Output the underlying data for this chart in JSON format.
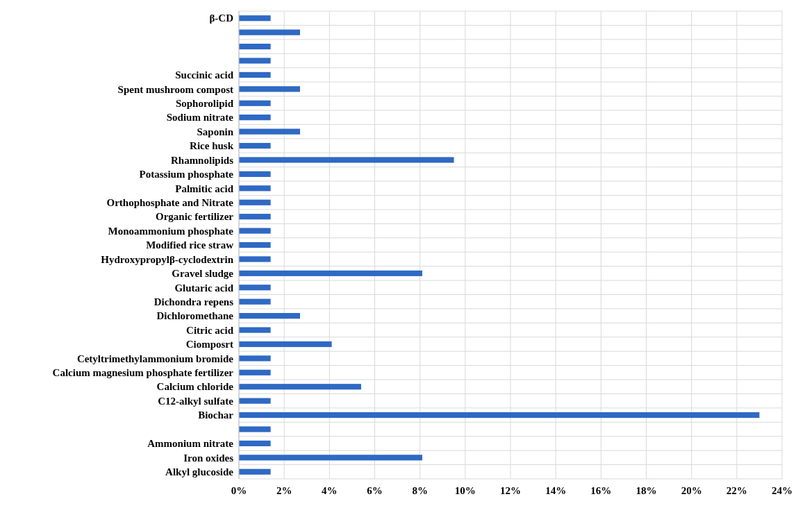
{
  "chart_data": {
    "type": "bar",
    "orientation": "horizontal",
    "categories": [
      "β-CD",
      null,
      null,
      null,
      "Succinic acid",
      "Spent mushroom compost",
      "Sophorolipid",
      "Sodium nitrate",
      "Saponin",
      "Rice husk",
      "Rhamnolipids",
      "Potassium phosphate",
      "Palmitic acid",
      "Orthophosphate and Nitrate",
      "Organic fertilizer",
      "Monoammonium phosphate",
      "Modified rice straw",
      "Hydroxypropylβ-cyclodextrin",
      "Gravel sludge",
      "Glutaric acid",
      "Dichondra repens",
      "Dichloromethane",
      "Citric acid",
      "Ciomposrt",
      "Cetyltrimethylammonium bromide",
      "Calcium magnesium phosphate fertilizer",
      "Calcium chloride",
      "C12-alkyl sulfate",
      "Biochar",
      null,
      "Ammonium nitrate",
      "Iron oxides",
      "Alkyl glucoside"
    ],
    "values": [
      1.4,
      2.7,
      1.4,
      1.4,
      1.4,
      2.7,
      1.4,
      1.4,
      2.7,
      1.4,
      9.5,
      1.4,
      1.4,
      1.4,
      1.4,
      1.4,
      1.4,
      1.4,
      8.1,
      1.4,
      1.4,
      2.7,
      1.4,
      4.1,
      1.4,
      1.4,
      5.4,
      1.4,
      23.0,
      1.4,
      1.4,
      8.1,
      1.4
    ],
    "color": "#2e69c4",
    "xlim": [
      0,
      24
    ],
    "xticks": [
      {
        "value": 0,
        "label": "0%"
      },
      {
        "value": 2,
        "label": "2%"
      },
      {
        "value": 4,
        "label": "4%"
      },
      {
        "value": 6,
        "label": "6%"
      },
      {
        "value": 8,
        "label": "8%"
      },
      {
        "value": 10,
        "label": "10%"
      },
      {
        "value": 12,
        "label": "12%"
      },
      {
        "value": 14,
        "label": "14%"
      },
      {
        "value": 16,
        "label": "16%"
      },
      {
        "value": 18,
        "label": "18%"
      },
      {
        "value": 20,
        "label": "20%"
      },
      {
        "value": 22,
        "label": "22%"
      },
      {
        "value": 24,
        "label": "24%"
      }
    ],
    "grid": true
  }
}
